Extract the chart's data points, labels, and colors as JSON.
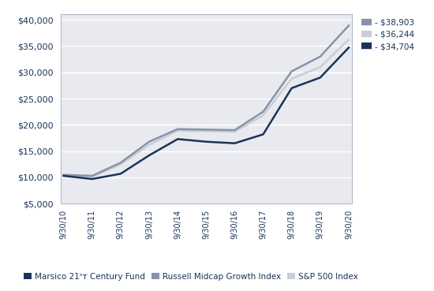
{
  "x_labels": [
    "9/30/10",
    "9/30/11",
    "9/30/12",
    "9/30/13",
    "9/30/14",
    "9/30/15",
    "9/30/16",
    "9/30/17",
    "9/30/18",
    "9/30/19",
    "9/30/20"
  ],
  "marsico": [
    10300,
    9700,
    10700,
    14200,
    17300,
    16800,
    16500,
    18200,
    27000,
    29000,
    34704
  ],
  "russell": [
    10500,
    10300,
    12800,
    16800,
    19200,
    19100,
    19000,
    22500,
    30200,
    33000,
    38903
  ],
  "sp500": [
    10400,
    10100,
    12500,
    16200,
    18900,
    18800,
    18700,
    21800,
    28800,
    31000,
    36244
  ],
  "marsico_color": "#1a3358",
  "russell_color": "#8892aa",
  "sp500_color": "#c8cdd8",
  "marsico_label": "Marsico 21ˢᴛ Century Fund",
  "russell_label": "Russell Midcap Growth Index",
  "sp500_label": "S&P 500 Index",
  "marsico_legend": "- $34,704",
  "russell_legend": "- $38,903",
  "sp500_legend": "- $36,244",
  "ylim": [
    5000,
    41000
  ],
  "yticks": [
    5000,
    10000,
    15000,
    20000,
    25000,
    30000,
    35000,
    40000
  ],
  "background_plot": "#e8eaf0",
  "background_fig": "#ffffff",
  "grid_color": "#ffffff",
  "border_color": "#b0b8c8",
  "tick_color": "#1a3358",
  "ylabel_fontsize": 8,
  "xlabel_fontsize": 7
}
